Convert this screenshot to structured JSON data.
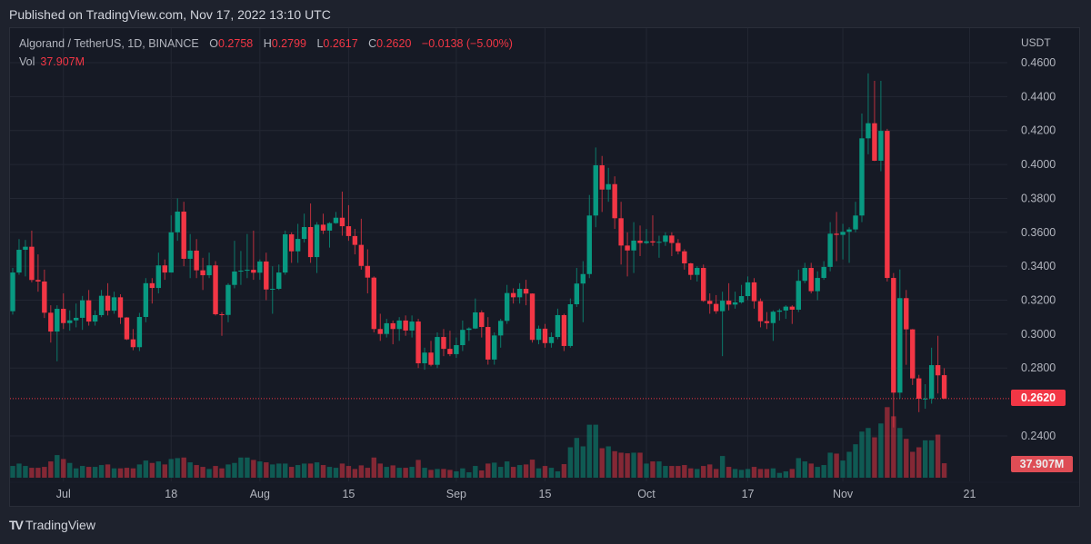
{
  "header": {
    "published": "Published on TradingView.com, Nov 17, 2022 13:10 UTC"
  },
  "legend": {
    "symbol": "Algorand / TetherUS, 1D, BINANCE",
    "o_label": "O",
    "o": "0.2758",
    "h_label": "H",
    "h": "0.2799",
    "l_label": "L",
    "l": "0.2617",
    "c_label": "C",
    "c": "0.2620",
    "change": "−0.0138 (−5.00%)",
    "vol_label": "Vol",
    "vol": "37.907M"
  },
  "price_axis": {
    "unit": "USDT",
    "last_price_tag": "0.2620",
    "last_volume_tag": "37.907M"
  },
  "footer": {
    "brand": "TradingView",
    "logo_mark": "TV"
  },
  "colors": {
    "up": "#089981",
    "down": "#f23645",
    "grid": "#232733",
    "background": "#161a25"
  },
  "chart_data": {
    "type": "candlestick",
    "title": "Algorand / TetherUS, 1D, BINANCE",
    "xlabel": "",
    "ylabel": "USDT",
    "first_date": "2022-06-23",
    "last_date": "2022-11-17",
    "ylim": [
      0.22,
      0.47
    ],
    "y_ticks": [
      "0.4600",
      "0.4400",
      "0.4200",
      "0.4000",
      "0.3800",
      "0.3600",
      "0.3400",
      "0.3200",
      "0.3000",
      "0.2800",
      "0.2400"
    ],
    "x_ticks": [
      {
        "label": "Jul",
        "index": 8
      },
      {
        "label": "18",
        "index": 25
      },
      {
        "label": "Aug",
        "index": 39
      },
      {
        "label": "15",
        "index": 53
      },
      {
        "label": "Sep",
        "index": 70
      },
      {
        "label": "15",
        "index": 84
      },
      {
        "label": "Oct",
        "index": 100
      },
      {
        "label": "17",
        "index": 116
      },
      {
        "label": "Nov",
        "index": 131
      },
      {
        "label": "21",
        "index": 151
      }
    ],
    "grid": true,
    "candles_ohlc": [
      [
        0.3135,
        0.339,
        0.3115,
        0.3363
      ],
      [
        0.3363,
        0.356,
        0.335,
        0.3497
      ],
      [
        0.3497,
        0.3555,
        0.334,
        0.3515
      ],
      [
        0.3515,
        0.361,
        0.3305,
        0.3319
      ],
      [
        0.3319,
        0.347,
        0.325,
        0.331
      ],
      [
        0.331,
        0.338,
        0.3095,
        0.3126
      ],
      [
        0.3126,
        0.317,
        0.295,
        0.3015
      ],
      [
        0.3015,
        0.317,
        0.284,
        0.3149
      ],
      [
        0.3149,
        0.324,
        0.303,
        0.3065
      ],
      [
        0.3065,
        0.314,
        0.302,
        0.3081
      ],
      [
        0.3081,
        0.318,
        0.304,
        0.3096
      ],
      [
        0.3096,
        0.3225,
        0.3025,
        0.3199
      ],
      [
        0.3199,
        0.326,
        0.305,
        0.3074
      ],
      [
        0.3074,
        0.314,
        0.305,
        0.3112
      ],
      [
        0.3112,
        0.326,
        0.31,
        0.3226
      ],
      [
        0.3226,
        0.33,
        0.311,
        0.3138
      ],
      [
        0.3138,
        0.325,
        0.312,
        0.3217
      ],
      [
        0.3217,
        0.3235,
        0.306,
        0.3098
      ],
      [
        0.3098,
        0.31,
        0.2965,
        0.2969
      ],
      [
        0.2969,
        0.303,
        0.2905,
        0.2923
      ],
      [
        0.2923,
        0.3125,
        0.29,
        0.3101
      ],
      [
        0.3101,
        0.333,
        0.307,
        0.33
      ],
      [
        0.33,
        0.333,
        0.318,
        0.3272
      ],
      [
        0.3272,
        0.348,
        0.324,
        0.3405
      ],
      [
        0.3405,
        0.344,
        0.332,
        0.3363
      ],
      [
        0.3363,
        0.37,
        0.3363,
        0.36
      ],
      [
        0.36,
        0.38,
        0.355,
        0.3722
      ],
      [
        0.3722,
        0.378,
        0.34,
        0.3444
      ],
      [
        0.3444,
        0.359,
        0.333,
        0.3492
      ],
      [
        0.3492,
        0.356,
        0.333,
        0.3376
      ],
      [
        0.3376,
        0.345,
        0.326,
        0.3347
      ],
      [
        0.3347,
        0.348,
        0.333,
        0.3405
      ],
      [
        0.3405,
        0.343,
        0.311,
        0.3117
      ],
      [
        0.3117,
        0.313,
        0.299,
        0.3113
      ],
      [
        0.3113,
        0.33,
        0.307,
        0.329
      ],
      [
        0.329,
        0.355,
        0.327,
        0.3369
      ],
      [
        0.3369,
        0.349,
        0.329,
        0.3374
      ],
      [
        0.3374,
        0.359,
        0.333,
        0.3379
      ],
      [
        0.3379,
        0.361,
        0.332,
        0.3362
      ],
      [
        0.3362,
        0.344,
        0.332,
        0.3428
      ],
      [
        0.3428,
        0.348,
        0.32,
        0.3263
      ],
      [
        0.3263,
        0.34,
        0.312,
        0.3267
      ],
      [
        0.3267,
        0.341,
        0.326,
        0.3363
      ],
      [
        0.3363,
        0.361,
        0.335,
        0.3588
      ],
      [
        0.3588,
        0.36,
        0.342,
        0.3488
      ],
      [
        0.3488,
        0.365,
        0.342,
        0.3561
      ],
      [
        0.3561,
        0.371,
        0.354,
        0.3631
      ],
      [
        0.3631,
        0.377,
        0.342,
        0.3454
      ],
      [
        0.3454,
        0.366,
        0.336,
        0.3645
      ],
      [
        0.3645,
        0.371,
        0.359,
        0.361
      ],
      [
        0.361,
        0.366,
        0.351,
        0.3654
      ],
      [
        0.3654,
        0.372,
        0.365,
        0.3686
      ],
      [
        0.3686,
        0.384,
        0.358,
        0.3636
      ],
      [
        0.3636,
        0.376,
        0.355,
        0.3578
      ],
      [
        0.3578,
        0.362,
        0.347,
        0.3526
      ],
      [
        0.3526,
        0.368,
        0.338,
        0.3402
      ],
      [
        0.3402,
        0.35,
        0.324,
        0.3333
      ],
      [
        0.3333,
        0.334,
        0.301,
        0.303
      ],
      [
        0.303,
        0.312,
        0.296,
        0.3001
      ],
      [
        0.3001,
        0.309,
        0.298,
        0.3064
      ],
      [
        0.3064,
        0.308,
        0.294,
        0.303
      ],
      [
        0.303,
        0.31,
        0.296,
        0.308
      ],
      [
        0.308,
        0.311,
        0.299,
        0.3021
      ],
      [
        0.3021,
        0.311,
        0.298,
        0.3074
      ],
      [
        0.3074,
        0.309,
        0.28,
        0.2828
      ],
      [
        0.2828,
        0.292,
        0.279,
        0.2891
      ],
      [
        0.2891,
        0.296,
        0.281,
        0.2819
      ],
      [
        0.2819,
        0.301,
        0.28,
        0.2983
      ],
      [
        0.2983,
        0.303,
        0.287,
        0.2913
      ],
      [
        0.2913,
        0.302,
        0.287,
        0.2882
      ],
      [
        0.2882,
        0.298,
        0.286,
        0.2935
      ],
      [
        0.2935,
        0.308,
        0.29,
        0.3025
      ],
      [
        0.3025,
        0.304,
        0.296,
        0.3033
      ],
      [
        0.3033,
        0.321,
        0.303,
        0.3128
      ],
      [
        0.3128,
        0.314,
        0.298,
        0.3042
      ],
      [
        0.3042,
        0.31,
        0.282,
        0.285
      ],
      [
        0.285,
        0.301,
        0.282,
        0.2992
      ],
      [
        0.2992,
        0.309,
        0.292,
        0.3078
      ],
      [
        0.3078,
        0.329,
        0.306,
        0.3242
      ],
      [
        0.3242,
        0.327,
        0.318,
        0.3217
      ],
      [
        0.3217,
        0.33,
        0.318,
        0.3267
      ],
      [
        0.3267,
        0.332,
        0.317,
        0.3239
      ],
      [
        0.3239,
        0.324,
        0.295,
        0.2966
      ],
      [
        0.2966,
        0.305,
        0.294,
        0.3032
      ],
      [
        0.3032,
        0.306,
        0.292,
        0.2947
      ],
      [
        0.2947,
        0.301,
        0.292,
        0.2983
      ],
      [
        0.2983,
        0.315,
        0.297,
        0.3112
      ],
      [
        0.3112,
        0.312,
        0.29,
        0.293
      ],
      [
        0.293,
        0.321,
        0.292,
        0.3176
      ],
      [
        0.3176,
        0.339,
        0.316,
        0.3298
      ],
      [
        0.3298,
        0.343,
        0.307,
        0.3354
      ],
      [
        0.3354,
        0.382,
        0.333,
        0.3699
      ],
      [
        0.3699,
        0.41,
        0.363,
        0.3995
      ],
      [
        0.3995,
        0.405,
        0.372,
        0.3852
      ],
      [
        0.3852,
        0.398,
        0.378,
        0.3884
      ],
      [
        0.3884,
        0.393,
        0.362,
        0.3683
      ],
      [
        0.3683,
        0.378,
        0.341,
        0.3522
      ],
      [
        0.3522,
        0.36,
        0.334,
        0.3493
      ],
      [
        0.3493,
        0.366,
        0.336,
        0.3551
      ],
      [
        0.3551,
        0.364,
        0.346,
        0.3537
      ],
      [
        0.3537,
        0.362,
        0.353,
        0.3547
      ],
      [
        0.3547,
        0.37,
        0.352,
        0.354
      ],
      [
        0.354,
        0.358,
        0.345,
        0.3544
      ],
      [
        0.3544,
        0.36,
        0.352,
        0.3581
      ],
      [
        0.3581,
        0.36,
        0.346,
        0.3537
      ],
      [
        0.3537,
        0.356,
        0.347,
        0.3488
      ],
      [
        0.3488,
        0.35,
        0.338,
        0.3417
      ],
      [
        0.3417,
        0.342,
        0.332,
        0.3349
      ],
      [
        0.3349,
        0.34,
        0.331,
        0.339
      ],
      [
        0.339,
        0.341,
        0.319,
        0.3196
      ],
      [
        0.3196,
        0.324,
        0.312,
        0.3178
      ],
      [
        0.3178,
        0.323,
        0.312,
        0.3135
      ],
      [
        0.3135,
        0.325,
        0.287,
        0.3197
      ],
      [
        0.3197,
        0.33,
        0.314,
        0.3174
      ],
      [
        0.3174,
        0.325,
        0.315,
        0.3187
      ],
      [
        0.3187,
        0.329,
        0.318,
        0.3224
      ],
      [
        0.3224,
        0.334,
        0.32,
        0.3305
      ],
      [
        0.3305,
        0.333,
        0.315,
        0.3194
      ],
      [
        0.3194,
        0.321,
        0.304,
        0.3076
      ],
      [
        0.3076,
        0.313,
        0.303,
        0.3065
      ],
      [
        0.3065,
        0.314,
        0.296,
        0.3132
      ],
      [
        0.3132,
        0.315,
        0.308,
        0.3139
      ],
      [
        0.3139,
        0.317,
        0.309,
        0.3162
      ],
      [
        0.3162,
        0.317,
        0.306,
        0.3144
      ],
      [
        0.3144,
        0.338,
        0.313,
        0.3314
      ],
      [
        0.3314,
        0.342,
        0.33,
        0.339
      ],
      [
        0.339,
        0.342,
        0.324,
        0.3253
      ],
      [
        0.3253,
        0.337,
        0.32,
        0.3331
      ],
      [
        0.3331,
        0.343,
        0.332,
        0.3396
      ],
      [
        0.3396,
        0.366,
        0.337,
        0.3592
      ],
      [
        0.3592,
        0.372,
        0.343,
        0.3585
      ],
      [
        0.3585,
        0.365,
        0.344,
        0.3603
      ],
      [
        0.3603,
        0.363,
        0.342,
        0.3617
      ],
      [
        0.3617,
        0.378,
        0.36,
        0.3699
      ],
      [
        0.3699,
        0.43,
        0.366,
        0.4154
      ],
      [
        0.4154,
        0.4537,
        0.406,
        0.4243
      ],
      [
        0.4243,
        0.4493,
        0.402,
        0.4022
      ],
      [
        0.4022,
        0.4493,
        0.396,
        0.4198
      ],
      [
        0.4198,
        0.421,
        0.331,
        0.3331
      ],
      [
        0.3331,
        0.336,
        0.245,
        0.2655
      ],
      [
        0.2655,
        0.3381,
        0.262,
        0.3212
      ],
      [
        0.3212,
        0.326,
        0.2819,
        0.3028
      ],
      [
        0.3028,
        0.303,
        0.27,
        0.2739
      ],
      [
        0.2739,
        0.276,
        0.254,
        0.2619
      ],
      [
        0.2619,
        0.2705,
        0.256,
        0.262
      ],
      [
        0.262,
        0.292,
        0.259,
        0.2817
      ],
      [
        0.2817,
        0.299,
        0.265,
        0.2757
      ],
      [
        0.2758,
        0.2799,
        0.2617,
        0.262
      ]
    ],
    "volume_millions": [
      30.8,
      37.1,
      30.8,
      26,
      26,
      28.4,
      42.7,
      59.3,
      49,
      38.7,
      24.5,
      30.8,
      28.4,
      28.4,
      33.2,
      34.8,
      24.5,
      24.5,
      26,
      24.5,
      34.8,
      45,
      38.7,
      42.7,
      34.8,
      49,
      51.4,
      52.9,
      40.3,
      33.2,
      28.4,
      22.9,
      30.8,
      24.5,
      34.8,
      38.7,
      52.9,
      52.9,
      46.6,
      42.7,
      40.3,
      34.8,
      37.1,
      37.1,
      28.4,
      33.2,
      37.1,
      37.1,
      40.3,
      33.2,
      28.4,
      26,
      37.1,
      30.8,
      22.9,
      32.4,
      26,
      52.9,
      37.1,
      28.4,
      32.4,
      26,
      26,
      28.4,
      46.6,
      26,
      20.5,
      22.9,
      22.9,
      20.5,
      16.6,
      24.5,
      14.2,
      30.8,
      19,
      37.1,
      39.5,
      28.4,
      42.7,
      28.4,
      33.2,
      34.8,
      47.4,
      24.5,
      30.8,
      26,
      16.6,
      35.6,
      79.8,
      104.3,
      82.2,
      139,
      139,
      77.4,
      82.2,
      69.5,
      65.6,
      64,
      65.6,
      65.6,
      37.1,
      42.7,
      42.7,
      30.8,
      30.8,
      30.8,
      33.2,
      24.5,
      22.9,
      30.8,
      34.8,
      22.9,
      56.9,
      28.4,
      22.9,
      20.5,
      22.9,
      28.4,
      22.9,
      22.9,
      24.5,
      12.6,
      16.6,
      22.9,
      51.4,
      42.7,
      37.1,
      28.4,
      33.2,
      65.6,
      63.2,
      45,
      67.9,
      87.7,
      120.9,
      130.4,
      105.9,
      142.2,
      185,
      161,
      130.4,
      101.9,
      67.9,
      79.8,
      98,
      98,
      113,
      37.907
    ],
    "last_price": 0.262
  }
}
